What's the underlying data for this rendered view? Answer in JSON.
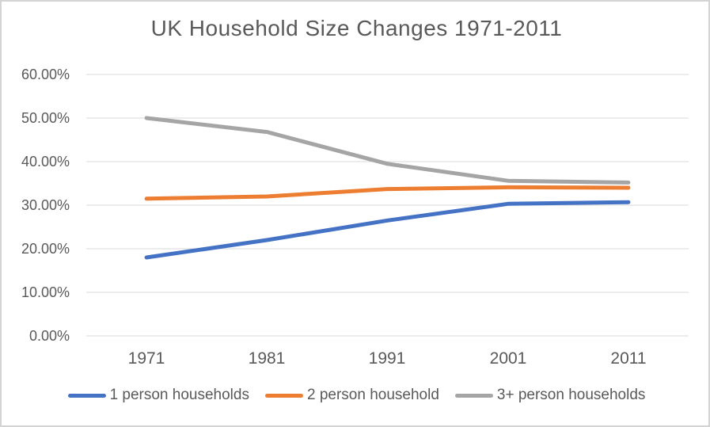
{
  "chart": {
    "title": "UK Household Size Changes 1971-2011"
  },
  "chart_data": {
    "type": "line",
    "title": "UK Household Size Changes 1971-2011",
    "categories": [
      "1971",
      "1981",
      "1991",
      "2001",
      "2011"
    ],
    "series": [
      {
        "name": "1 person households",
        "color": "#4472C4",
        "values": [
          18.0,
          22.0,
          26.5,
          30.3,
          30.7
        ]
      },
      {
        "name": "2 person household",
        "color": "#ED7D31",
        "values": [
          31.5,
          32.0,
          33.7,
          34.1,
          34.0
        ]
      },
      {
        "name": "3+ person households",
        "color": "#A5A5A5",
        "values": [
          50.0,
          46.8,
          39.5,
          35.6,
          35.2
        ]
      }
    ],
    "xlabel": "",
    "ylabel": "",
    "ylim": [
      0,
      60
    ],
    "ytick_labels": [
      "60.00%",
      "50.00%",
      "40.00%",
      "30.00%",
      "20.00%",
      "10.00%",
      "0.00%"
    ],
    "grid": true,
    "legend_position": "bottom"
  },
  "colors": {
    "text": "#595959",
    "gridline": "#D9D9D9",
    "frame_border": "#D4D4D4",
    "background": "#FFFFFF"
  }
}
